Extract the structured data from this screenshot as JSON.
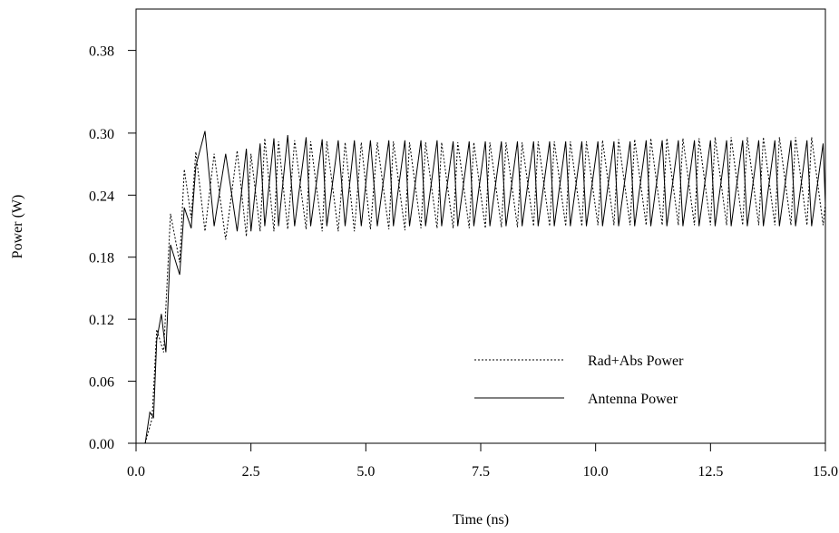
{
  "chart_data": {
    "type": "line",
    "title": "",
    "xlabel": "Time (ns)",
    "ylabel": "Power (W)",
    "xlim": [
      0,
      15
    ],
    "ylim": [
      0,
      0.42
    ],
    "x_ticks": [
      0,
      2.5,
      5,
      7.5,
      10,
      12.5,
      15
    ],
    "x_tick_labels": [
      "0.0",
      "2.5",
      "5.0",
      "7.5",
      "10.0",
      "12.5",
      "15.0"
    ],
    "y_ticks": [
      0,
      0.06,
      0.12,
      0.18,
      0.24,
      0.3,
      0.38
    ],
    "y_tick_labels": [
      "0.00",
      "0.06",
      "0.12",
      "0.18",
      "0.24",
      "0.30",
      "0.38"
    ],
    "grid": false,
    "legend_position": "lower-right",
    "series": [
      {
        "name": "Rad+Abs Power",
        "style": "dotted",
        "x": [
          0.2,
          0.35,
          0.45,
          0.6,
          0.75,
          0.95,
          1.05,
          1.2,
          1.3,
          1.5,
          1.7,
          1.95,
          2.2,
          2.4,
          2.5,
          2.7,
          2.8,
          3.0,
          3.1,
          3.3,
          3.45,
          3.7,
          3.8,
          4.05,
          4.15,
          4.4,
          4.55,
          4.75,
          4.9,
          5.1,
          5.25,
          5.5,
          5.6,
          5.85,
          5.95,
          6.2,
          6.3,
          6.55,
          6.65,
          6.9,
          7.0,
          7.25,
          7.35,
          7.6,
          7.7,
          7.95,
          8.05,
          8.3,
          8.4,
          8.65,
          8.75,
          9.0,
          9.1,
          9.35,
          9.45,
          9.7,
          9.8,
          10.05,
          10.15,
          10.4,
          10.5,
          10.75,
          10.85,
          11.1,
          11.2,
          11.45,
          11.55,
          11.8,
          11.9,
          12.15,
          12.25,
          12.5,
          12.6,
          12.85,
          12.95,
          13.2,
          13.3,
          13.55,
          13.65,
          13.9,
          14.0,
          14.25,
          14.35,
          14.6,
          14.7,
          14.95,
          15.0
        ],
        "values": [
          0.0,
          0.024,
          0.11,
          0.088,
          0.222,
          0.175,
          0.265,
          0.218,
          0.282,
          0.205,
          0.28,
          0.197,
          0.283,
          0.2,
          0.28,
          0.205,
          0.295,
          0.205,
          0.292,
          0.207,
          0.293,
          0.207,
          0.292,
          0.205,
          0.292,
          0.205,
          0.291,
          0.205,
          0.291,
          0.207,
          0.291,
          0.207,
          0.292,
          0.206,
          0.291,
          0.208,
          0.291,
          0.208,
          0.291,
          0.208,
          0.291,
          0.208,
          0.291,
          0.208,
          0.291,
          0.209,
          0.291,
          0.209,
          0.291,
          0.21,
          0.292,
          0.21,
          0.292,
          0.21,
          0.292,
          0.21,
          0.292,
          0.211,
          0.293,
          0.211,
          0.294,
          0.211,
          0.294,
          0.211,
          0.295,
          0.211,
          0.295,
          0.211,
          0.295,
          0.211,
          0.295,
          0.211,
          0.296,
          0.211,
          0.296,
          0.211,
          0.296,
          0.211,
          0.296,
          0.211,
          0.296,
          0.211,
          0.296,
          0.211,
          0.296,
          0.211,
          0.232
        ]
      },
      {
        "name": "Antenna Power",
        "style": "solid",
        "x": [
          0.2,
          0.3,
          0.38,
          0.45,
          0.55,
          0.65,
          0.75,
          0.95,
          1.05,
          1.2,
          1.3,
          1.5,
          1.7,
          1.95,
          2.2,
          2.4,
          2.5,
          2.7,
          2.8,
          3.0,
          3.1,
          3.3,
          3.45,
          3.7,
          3.8,
          4.05,
          4.15,
          4.4,
          4.55,
          4.75,
          4.9,
          5.1,
          5.25,
          5.5,
          5.6,
          5.85,
          5.95,
          6.2,
          6.3,
          6.55,
          6.65,
          6.9,
          7.0,
          7.25,
          7.35,
          7.6,
          7.7,
          7.95,
          8.05,
          8.3,
          8.4,
          8.65,
          8.75,
          9.0,
          9.1,
          9.35,
          9.45,
          9.7,
          9.8,
          10.05,
          10.15,
          10.4,
          10.5,
          10.75,
          10.85,
          11.1,
          11.2,
          11.45,
          11.55,
          11.8,
          11.9,
          12.15,
          12.25,
          12.5,
          12.6,
          12.85,
          12.95,
          13.2,
          13.3,
          13.55,
          13.65,
          13.9,
          14.0,
          14.25,
          14.35,
          14.6,
          14.7,
          14.95,
          15.0
        ],
        "values": [
          0.0,
          0.03,
          0.025,
          0.1,
          0.125,
          0.088,
          0.192,
          0.163,
          0.228,
          0.208,
          0.268,
          0.302,
          0.21,
          0.28,
          0.205,
          0.285,
          0.205,
          0.29,
          0.21,
          0.295,
          0.21,
          0.298,
          0.21,
          0.296,
          0.21,
          0.294,
          0.21,
          0.293,
          0.21,
          0.293,
          0.21,
          0.293,
          0.21,
          0.293,
          0.21,
          0.293,
          0.21,
          0.293,
          0.21,
          0.293,
          0.21,
          0.292,
          0.21,
          0.292,
          0.21,
          0.292,
          0.21,
          0.292,
          0.21,
          0.292,
          0.21,
          0.292,
          0.21,
          0.292,
          0.21,
          0.292,
          0.21,
          0.292,
          0.21,
          0.292,
          0.21,
          0.292,
          0.21,
          0.292,
          0.21,
          0.293,
          0.21,
          0.293,
          0.21,
          0.293,
          0.21,
          0.293,
          0.21,
          0.293,
          0.21,
          0.293,
          0.21,
          0.293,
          0.21,
          0.293,
          0.21,
          0.293,
          0.21,
          0.293,
          0.21,
          0.293,
          0.21,
          0.29,
          0.23
        ]
      }
    ]
  }
}
